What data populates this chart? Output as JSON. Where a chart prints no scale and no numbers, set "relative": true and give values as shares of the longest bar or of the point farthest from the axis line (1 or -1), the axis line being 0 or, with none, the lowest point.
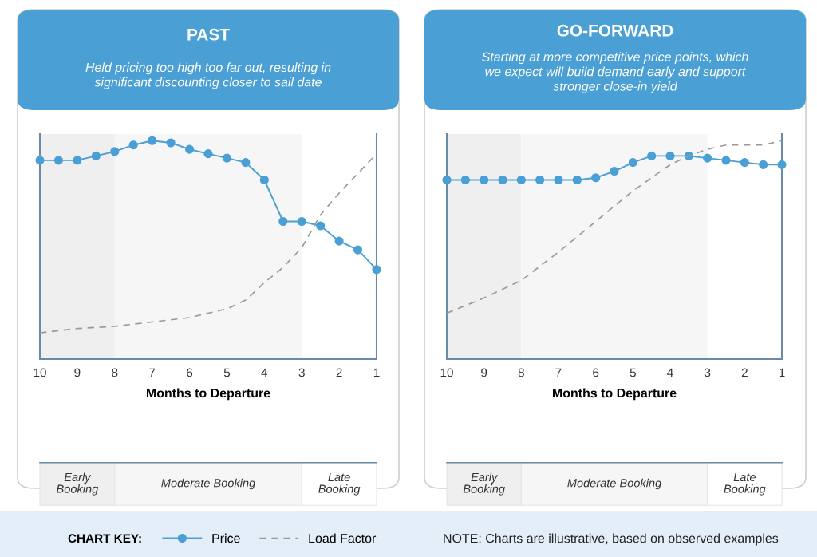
{
  "chart_data": [
    {
      "type": "line",
      "relative": true,
      "title": "PAST",
      "subtitle": "Held pricing too high too far out, resulting in\nsignificant discounting closer to sail date",
      "xlabel": "Months to Departure",
      "xlim": [
        10,
        1
      ],
      "xticks": [
        10,
        9,
        8,
        7,
        6,
        5,
        4,
        3,
        2,
        1
      ],
      "legend": "bottom",
      "legend_title": "CHART KEY:",
      "grid": false,
      "series": [
        {
          "name": "Price",
          "color": "#4a9fd4",
          "marker": "circle",
          "line_style": "solid",
          "x": [
            10,
            9.5,
            9,
            8.5,
            8,
            7.5,
            7,
            6.5,
            6,
            5.5,
            5,
            4.5,
            4,
            3.5,
            3,
            2.5,
            2,
            1.5,
            1
          ],
          "values": [
            0.91,
            0.91,
            0.91,
            0.93,
            0.95,
            0.98,
            1,
            0.99,
            0.96,
            0.94,
            0.92,
            0.9,
            0.82,
            0.63,
            0.63,
            0.61,
            0.54,
            0.5,
            0.41
          ]
        },
        {
          "name": "Load Factor",
          "color": "#9a9a9a",
          "marker": "none",
          "line_style": "dashed",
          "x": [
            10,
            9,
            8,
            7,
            6,
            5,
            4.5,
            4,
            3.5,
            3,
            2.5,
            2,
            1.5,
            1
          ],
          "values": [
            0.12,
            0.14,
            0.15,
            0.17,
            0.19,
            0.23,
            0.27,
            0.35,
            0.42,
            0.51,
            0.66,
            0.76,
            0.85,
            0.94
          ]
        }
      ],
      "bands": [
        {
          "axis": "x",
          "from": 10,
          "to": 8,
          "color": "#efefef"
        },
        {
          "axis": "x",
          "from": 8,
          "to": 3,
          "color": "#f6f6f6"
        }
      ],
      "annotations": [
        "Early\nBooking",
        "Moderate Booking",
        "Late\nBooking"
      ]
    },
    {
      "type": "line",
      "relative": true,
      "title": "GO-FORWARD",
      "subtitle": "Starting at more competitive price points, which\nwe expect will build demand early and support\nstronger close-in yield",
      "xlabel": "Months to Departure",
      "xlim": [
        10,
        1
      ],
      "xticks": [
        10,
        9,
        8,
        7,
        6,
        5,
        4,
        3,
        2,
        1
      ],
      "grid": false,
      "annotations": [
        "Early\nBooking",
        "Moderate Booking",
        "Late\nBooking",
        "NOTE: Charts are illustrative, based on observed examples"
      ],
      "series": [
        {
          "color": "#4a9fd4",
          "marker": "circle",
          "line_style": "solid",
          "x": [
            10,
            9.5,
            9,
            8.5,
            8,
            7.5,
            7,
            6.5,
            6,
            5.5,
            5,
            4.5,
            4,
            3.5,
            3,
            2.5,
            2,
            1.5,
            1
          ],
          "values": [
            0.82,
            0.82,
            0.82,
            0.82,
            0.82,
            0.82,
            0.82,
            0.82,
            0.83,
            0.86,
            0.9,
            0.93,
            0.93,
            0.93,
            0.92,
            0.91,
            0.9,
            0.89,
            0.89
          ]
        },
        {
          "color": "#9a9a9a",
          "marker": "none",
          "line_style": "dashed",
          "x": [
            10,
            9,
            8,
            7,
            6,
            5,
            4,
            3.5,
            3,
            2.5,
            2,
            1.5,
            1
          ],
          "values": [
            0.21,
            0.28,
            0.36,
            0.49,
            0.63,
            0.77,
            0.89,
            0.93,
            0.96,
            0.98,
            0.98,
            0.98,
            1
          ]
        }
      ],
      "bands": [
        {
          "axis": "x",
          "from": 10,
          "to": 8,
          "color": "#efefef"
        },
        {
          "axis": "x",
          "from": 8,
          "to": 3,
          "color": "#f6f6f6"
        }
      ]
    }
  ]
}
